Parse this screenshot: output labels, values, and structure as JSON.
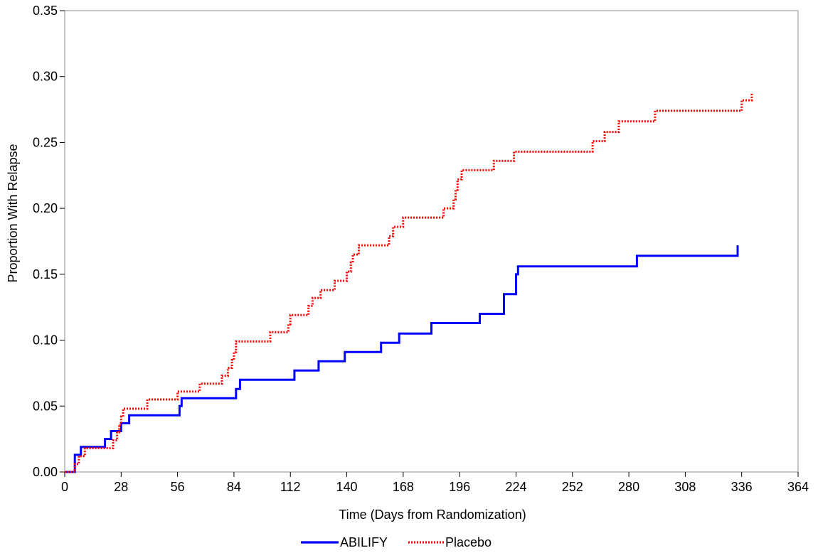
{
  "colors": {
    "abilify": "#0000ff",
    "placebo": "#ff0000",
    "frame": "#a0a0a0"
  },
  "chart_data": {
    "type": "line",
    "xlabel": "Time (Days from Randomization)",
    "ylabel": "Proportion With Relapse",
    "xlim": [
      0,
      364
    ],
    "ylim": [
      0,
      0.35
    ],
    "x_ticks": [
      "0",
      "28",
      "56",
      "84",
      "112",
      "140",
      "168",
      "196",
      "224",
      "252",
      "280",
      "308",
      "336",
      "364"
    ],
    "y_ticks": [
      "0.00",
      "0.05",
      "0.10",
      "0.15",
      "0.20",
      "0.25",
      "0.30",
      "0.35"
    ],
    "legend_position": "bottom",
    "grid": false,
    "series": [
      {
        "name": "ABILIFY",
        "style": "solid step",
        "points": [
          [
            0,
            0.0
          ],
          [
            5,
            0.013
          ],
          [
            8,
            0.019
          ],
          [
            20,
            0.025
          ],
          [
            23,
            0.031
          ],
          [
            28,
            0.037
          ],
          [
            32,
            0.043
          ],
          [
            57,
            0.05
          ],
          [
            58,
            0.056
          ],
          [
            85,
            0.063
          ],
          [
            87,
            0.07
          ],
          [
            114,
            0.077
          ],
          [
            126,
            0.084
          ],
          [
            139,
            0.091
          ],
          [
            157,
            0.098
          ],
          [
            166,
            0.105
          ],
          [
            182,
            0.113
          ],
          [
            206,
            0.12
          ],
          [
            218,
            0.135
          ],
          [
            224,
            0.15
          ],
          [
            225,
            0.156
          ],
          [
            284,
            0.164
          ],
          [
            334,
            0.172
          ]
        ]
      },
      {
        "name": "Placebo",
        "style": "dotted step",
        "points": [
          [
            0,
            0.0
          ],
          [
            5,
            0.006
          ],
          [
            7,
            0.012
          ],
          [
            10,
            0.018
          ],
          [
            24,
            0.024
          ],
          [
            26,
            0.03
          ],
          [
            27,
            0.036
          ],
          [
            28,
            0.042
          ],
          [
            29,
            0.048
          ],
          [
            41,
            0.055
          ],
          [
            56,
            0.061
          ],
          [
            67,
            0.067
          ],
          [
            78,
            0.073
          ],
          [
            81,
            0.079
          ],
          [
            83,
            0.085
          ],
          [
            84,
            0.091
          ],
          [
            85,
            0.099
          ],
          [
            102,
            0.106
          ],
          [
            111,
            0.112
          ],
          [
            112,
            0.119
          ],
          [
            121,
            0.126
          ],
          [
            123,
            0.132
          ],
          [
            127,
            0.138
          ],
          [
            134,
            0.145
          ],
          [
            140,
            0.152
          ],
          [
            142,
            0.159
          ],
          [
            143,
            0.165
          ],
          [
            146,
            0.172
          ],
          [
            161,
            0.179
          ],
          [
            163,
            0.186
          ],
          [
            168,
            0.193
          ],
          [
            188,
            0.2
          ],
          [
            193,
            0.207
          ],
          [
            194,
            0.214
          ],
          [
            195,
            0.222
          ],
          [
            197,
            0.229
          ],
          [
            213,
            0.236
          ],
          [
            223,
            0.243
          ],
          [
            262,
            0.251
          ],
          [
            268,
            0.258
          ],
          [
            275,
            0.266
          ],
          [
            293,
            0.274
          ],
          [
            336,
            0.282
          ],
          [
            341,
            0.287
          ]
        ]
      }
    ]
  }
}
